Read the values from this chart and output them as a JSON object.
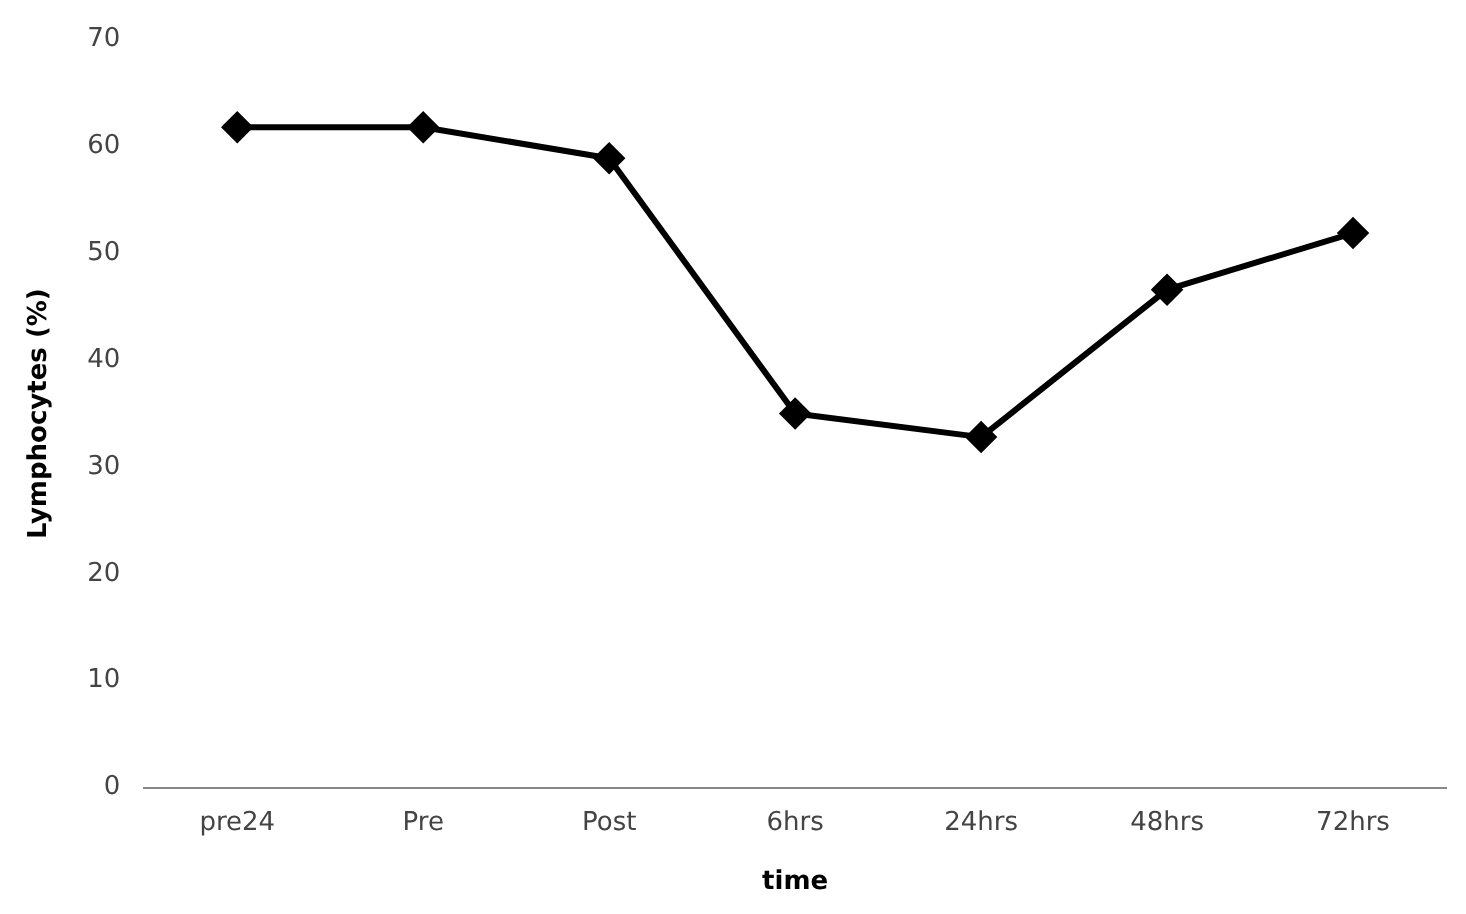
{
  "chart_data": {
    "type": "line",
    "xlabel": "time",
    "ylabel": "Lymphocytes (%)",
    "categories": [
      "pre24",
      "Pre",
      "Post",
      "6hrs",
      "24hrs",
      "48hrs",
      "72hrs"
    ],
    "series": [
      {
        "color": "#000000",
        "values": [
          61.8,
          61.8,
          58.9,
          35.0,
          32.8,
          46.6,
          51.9
        ]
      }
    ],
    "ylim": [
      0,
      70
    ],
    "yticks": [
      0,
      10,
      20,
      30,
      40,
      50,
      60,
      70
    ],
    "grid": false,
    "legend": false,
    "marker": "diamond",
    "line_style": "solid"
  }
}
